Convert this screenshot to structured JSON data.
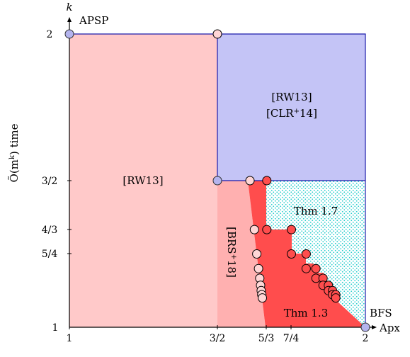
{
  "axes": {
    "y_label": "Õ(m^k) time",
    "y_symbol": "k",
    "y_top_label": "APSP",
    "x_arrow_label": "Apx",
    "x_right_label": "BFS",
    "x_ticks": [
      "1",
      "3/2",
      "5/3",
      "7/4",
      "2"
    ],
    "y_ticks": [
      "2",
      "3/2",
      "4/3",
      "5/4",
      "1"
    ],
    "x_range": [
      1,
      2
    ],
    "y_range": [
      1,
      2
    ]
  },
  "regions": {
    "left_label": "[RW13]",
    "top_right_label_1": "[RW13]",
    "top_right_label_2": "[CLR+14]",
    "brs_label": "[BRS+18]",
    "thm17_label": "Thm 1.7",
    "thm13_label": "Thm 1.3"
  },
  "colors": {
    "light_pink": "#ffc9c9",
    "medium_pink": "#ffb0b0",
    "red": "#ff4d4d",
    "lavender": "#c4c4f6",
    "cyan_hatch": "#22cccc",
    "blue_line": "#1a1aaa",
    "blue_point": "#b4b4ee",
    "pink_point": "#ffd6d6"
  },
  "points": {
    "blue": [
      [
        1,
        2
      ],
      [
        1.5,
        1.5
      ],
      [
        2,
        1
      ]
    ],
    "pink": [
      [
        1.5,
        2
      ],
      [
        1.61,
        1.5
      ],
      [
        1.625,
        1.333
      ],
      [
        1.633,
        1.25
      ],
      [
        1.639,
        1.2
      ],
      [
        1.643,
        1.167
      ],
      [
        1.646,
        1.143
      ],
      [
        1.648,
        1.125
      ],
      [
        1.65,
        1.111
      ],
      [
        1.652,
        1.1
      ]
    ],
    "red": [
      [
        1.667,
        1.5
      ],
      [
        1.667,
        1.333
      ],
      [
        1.75,
        1.333
      ],
      [
        1.75,
        1.25
      ],
      [
        1.8,
        1.25
      ],
      [
        1.8,
        1.2
      ],
      [
        1.833,
        1.2
      ],
      [
        1.833,
        1.167
      ],
      [
        1.857,
        1.167
      ],
      [
        1.857,
        1.143
      ],
      [
        1.875,
        1.143
      ],
      [
        1.875,
        1.125
      ],
      [
        1.889,
        1.125
      ],
      [
        1.889,
        1.111
      ],
      [
        1.9,
        1.111
      ],
      [
        1.9,
        1.1
      ]
    ]
  }
}
